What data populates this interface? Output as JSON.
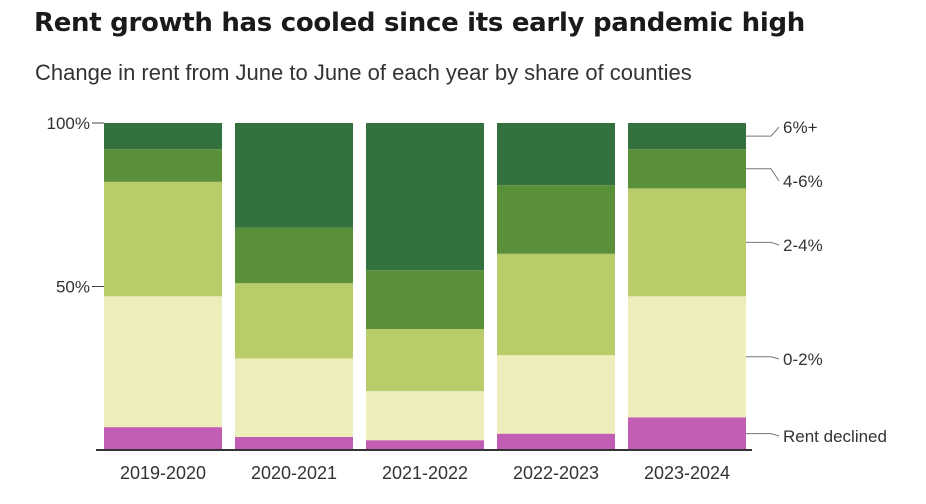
{
  "chart_data": {
    "type": "bar",
    "stacked": true,
    "title": "Rent growth has cooled since its early pandemic high",
    "subtitle": "Change in rent from June to June of each year by share of counties",
    "categories": [
      "2019-2020",
      "2020-2021",
      "2021-2022",
      "2022-2023",
      "2023-2024"
    ],
    "series": [
      {
        "name": "Rent declined",
        "color": "#c25db4",
        "values": [
          7,
          4,
          3,
          5,
          10
        ]
      },
      {
        "name": "0-2%",
        "color": "#eeeebc",
        "values": [
          40,
          24,
          15,
          24,
          37
        ]
      },
      {
        "name": "2-4%",
        "color": "#b9cc6a",
        "values": [
          35,
          23,
          19,
          31,
          33
        ]
      },
      {
        "name": "4-6%",
        "color": "#5a903a",
        "values": [
          10,
          17,
          18,
          21,
          12
        ]
      },
      {
        "name": "6%+",
        "color": "#33723e",
        "values": [
          8,
          32,
          45,
          19,
          8
        ]
      }
    ],
    "yticks": [
      {
        "value": 100,
        "label": "100%"
      },
      {
        "value": 50,
        "label": "50%"
      }
    ],
    "ylim": [
      0,
      100
    ],
    "xlabel": "",
    "ylabel": "",
    "legend_placement": "right"
  }
}
